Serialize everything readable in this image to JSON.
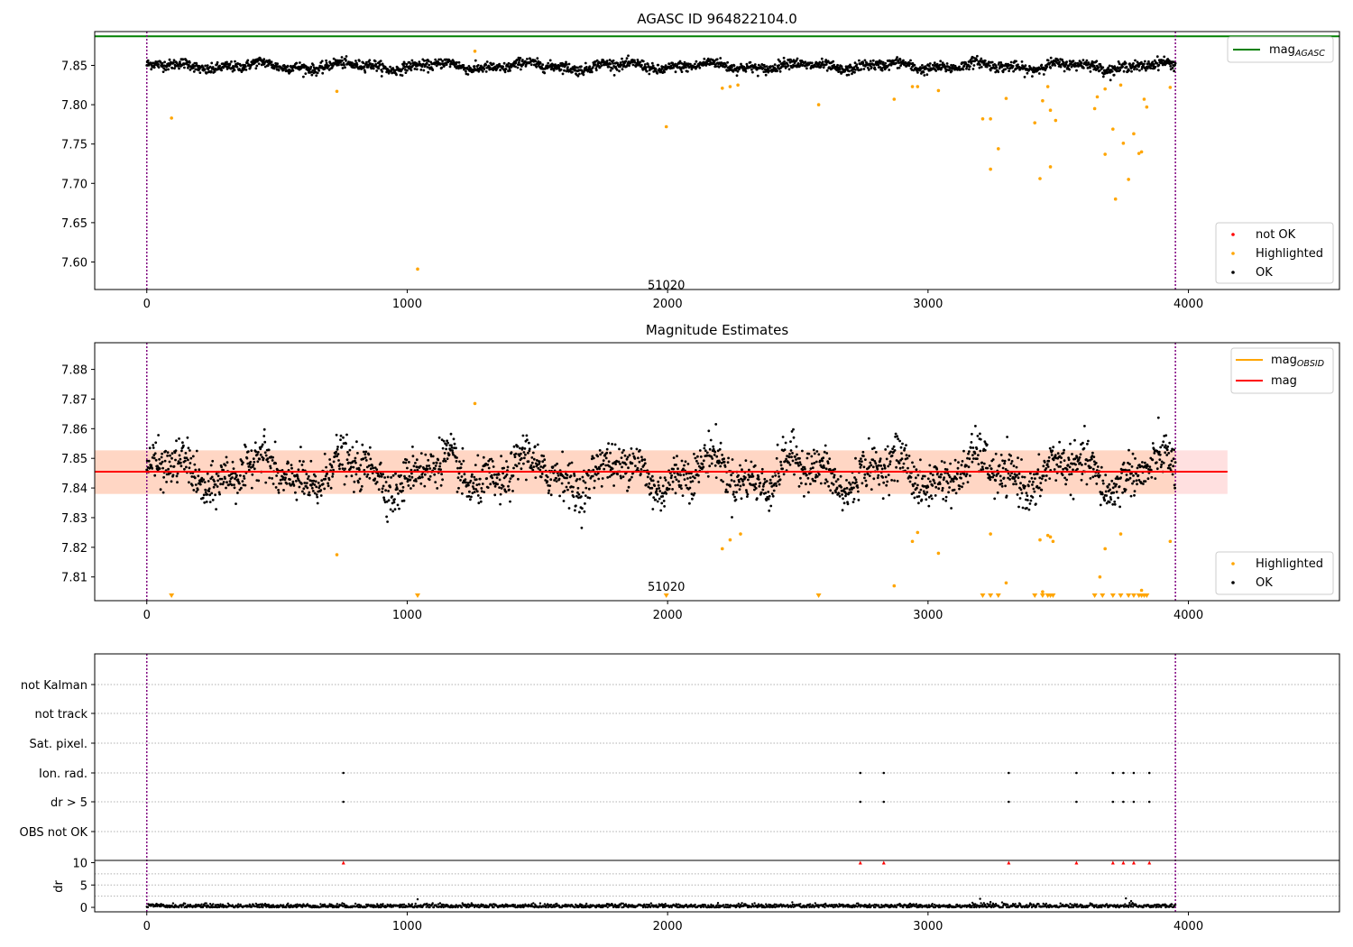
{
  "chart_data": [
    {
      "type": "scatter",
      "title": "AGASC ID 964822104.0",
      "xlim": [
        -200,
        4580
      ],
      "ylim": [
        7.565,
        7.893
      ],
      "xticks": [
        0,
        1000,
        2000,
        3000,
        4000
      ],
      "yticks": [
        7.6,
        7.65,
        7.7,
        7.75,
        7.8,
        7.85
      ],
      "annotation": {
        "text": "51020",
        "x": 1995,
        "y": 7.57
      },
      "vlines": [
        0,
        3950
      ],
      "hlines": [
        {
          "name": "mag_AGASC",
          "y": 7.887,
          "x_range": [
            -200,
            4580
          ],
          "color": "#008000"
        }
      ],
      "legends": [
        {
          "position": "top-right",
          "entries": [
            {
              "label": "mag",
              "sub": "AGASC",
              "kind": "line",
              "color": "#008000"
            }
          ]
        },
        {
          "position": "bottom-right",
          "entries": [
            {
              "label": "not OK",
              "kind": "dot",
              "color": "#ff0000"
            },
            {
              "label": "Highlighted",
              "kind": "dot",
              "color": "#ffa500"
            },
            {
              "label": "OK",
              "kind": "dot",
              "color": "#000000"
            }
          ]
        }
      ],
      "ok_series": {
        "name": "OK",
        "color": "#000000",
        "x_range": [
          0,
          3950
        ],
        "mean": 7.849,
        "spread": 0.006
      },
      "highlighted": {
        "name": "Highlighted",
        "color": "#ffa500",
        "points": [
          [
            95,
            7.783
          ],
          [
            730,
            7.817
          ],
          [
            1040,
            7.591
          ],
          [
            1260,
            7.868
          ],
          [
            1995,
            7.772
          ],
          [
            2210,
            7.821
          ],
          [
            2240,
            7.823
          ],
          [
            2270,
            7.825
          ],
          [
            2580,
            7.8
          ],
          [
            2870,
            7.807
          ],
          [
            2940,
            7.823
          ],
          [
            2960,
            7.823
          ],
          [
            3040,
            7.818
          ],
          [
            3210,
            7.782
          ],
          [
            3240,
            7.718
          ],
          [
            3240,
            7.782
          ],
          [
            3270,
            7.744
          ],
          [
            3300,
            7.808
          ],
          [
            3410,
            7.777
          ],
          [
            3430,
            7.706
          ],
          [
            3440,
            7.805
          ],
          [
            3460,
            7.823
          ],
          [
            3470,
            7.793
          ],
          [
            3470,
            7.721
          ],
          [
            3490,
            7.78
          ],
          [
            3640,
            7.795
          ],
          [
            3650,
            7.81
          ],
          [
            3680,
            7.82
          ],
          [
            3680,
            7.737
          ],
          [
            3710,
            7.769
          ],
          [
            3720,
            7.68
          ],
          [
            3740,
            7.825
          ],
          [
            3750,
            7.751
          ],
          [
            3770,
            7.705
          ],
          [
            3790,
            7.763
          ],
          [
            3810,
            7.738
          ],
          [
            3820,
            7.74
          ],
          [
            3830,
            7.807
          ],
          [
            3840,
            7.797
          ],
          [
            3930,
            7.822
          ]
        ]
      }
    },
    {
      "type": "scatter",
      "title": "Magnitude Estimates",
      "xlim": [
        -200,
        4580
      ],
      "ylim": [
        7.802,
        7.889
      ],
      "xticks": [
        0,
        1000,
        2000,
        3000,
        4000
      ],
      "yticks": [
        7.81,
        7.82,
        7.83,
        7.84,
        7.85,
        7.86,
        7.87,
        7.88
      ],
      "annotation": {
        "text": "51020",
        "x": 1995,
        "y": 7.8035
      },
      "vlines": [
        0,
        3950
      ],
      "hlines": [
        {
          "name": "mag_OBSID",
          "y": 7.8455,
          "x_range": [
            -200,
            3950
          ],
          "color": "#ffa500"
        },
        {
          "name": "mag",
          "y": 7.8455,
          "x_range": [
            -200,
            4150
          ],
          "color": "#ff0000"
        }
      ],
      "bands": [
        {
          "name": "mag_OBSID band",
          "y_range": [
            7.838,
            7.8527
          ],
          "x_range": [
            -200,
            3950
          ],
          "color": "#ffa500"
        },
        {
          "name": "mag band",
          "y_range": [
            7.838,
            7.8527
          ],
          "x_range": [
            -200,
            4150
          ],
          "color": "#ff0000"
        }
      ],
      "legends": [
        {
          "position": "top-right",
          "entries": [
            {
              "label": "mag",
              "sub": "OBSID",
              "kind": "line",
              "color": "#ffa500"
            },
            {
              "label": "mag",
              "kind": "line",
              "color": "#ff0000"
            }
          ]
        },
        {
          "position": "bottom-right",
          "entries": [
            {
              "label": "Highlighted",
              "kind": "dot",
              "color": "#ffa500"
            },
            {
              "label": "OK",
              "kind": "dot",
              "color": "#000000"
            }
          ]
        }
      ],
      "ok_series": {
        "name": "OK",
        "color": "#000000",
        "x_range": [
          0,
          3950
        ],
        "mean": 7.845,
        "spread": 0.0065
      },
      "highlighted": {
        "name": "Highlighted",
        "color": "#ffa500",
        "points": [
          [
            730,
            7.8175
          ],
          [
            1260,
            7.8685
          ],
          [
            2210,
            7.8195
          ],
          [
            2240,
            7.8225
          ],
          [
            2280,
            7.8245
          ],
          [
            2870,
            7.807
          ],
          [
            2940,
            7.822
          ],
          [
            2960,
            7.825
          ],
          [
            3040,
            7.818
          ],
          [
            3240,
            7.8245
          ],
          [
            3300,
            7.808
          ],
          [
            3430,
            7.8225
          ],
          [
            3440,
            7.805
          ],
          [
            3460,
            7.824
          ],
          [
            3470,
            7.8235
          ],
          [
            3480,
            7.822
          ],
          [
            3660,
            7.81
          ],
          [
            3680,
            7.8195
          ],
          [
            3740,
            7.8245
          ],
          [
            3820,
            7.8055
          ],
          [
            3930,
            7.822
          ]
        ]
      },
      "below_range_markers": {
        "name": "Highlighted below range",
        "color": "#ffa500",
        "x": [
          95,
          1040,
          1995,
          2580,
          3210,
          3240,
          3270,
          3410,
          3440,
          3460,
          3470,
          3480,
          3640,
          3670,
          3710,
          3740,
          3770,
          3790,
          3810,
          3820,
          3830,
          3840
        ]
      }
    },
    {
      "type": "scatter",
      "title": "",
      "xlim": [
        -200,
        4580
      ],
      "xticks": [
        0,
        1000,
        2000,
        3000,
        4000
      ],
      "vlines": [
        0,
        3950
      ],
      "categories": [
        "not Kalman",
        "not track",
        "Sat. pixel.",
        "Ion. rad.",
        "dr > 5",
        "OBS not OK"
      ],
      "flag_points": {
        "Ion. rad.": [
          755,
          2740,
          2830,
          3310,
          3570,
          3710,
          3750,
          3790,
          3850
        ],
        "dr > 5": [
          755,
          2740,
          2830,
          3310,
          3570,
          3710,
          3750,
          3790,
          3850
        ]
      },
      "dr_panel": {
        "ylabel": "dr",
        "ylim": [
          -1,
          10.5
        ],
        "yticks": [
          0,
          5,
          10
        ],
        "ok_series": {
          "name": "OK",
          "color": "#000000",
          "x_range": [
            0,
            3950
          ],
          "mean": 0.3,
          "spread": 0.25
        },
        "spikes": [
          [
            1040,
            1.8
          ],
          [
            3200,
            1.9
          ],
          [
            3240,
            1.2
          ],
          [
            3760,
            2.0
          ],
          [
            3780,
            1.4
          ]
        ],
        "clipped": {
          "color": "#ff0000",
          "y": 10,
          "x": [
            755,
            2740,
            2830,
            3310,
            3570,
            3710,
            3750,
            3790,
            3850
          ]
        }
      }
    }
  ]
}
